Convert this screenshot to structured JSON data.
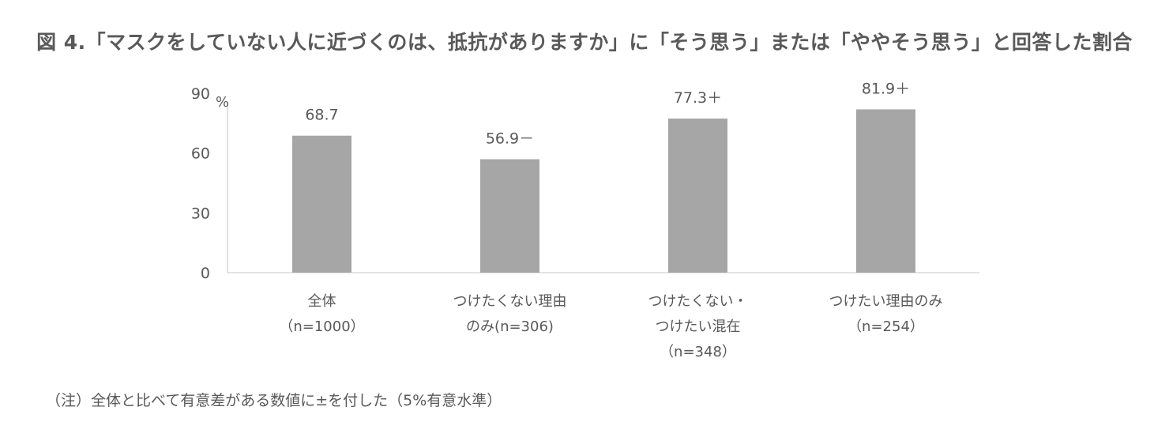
{
  "title": "図 4.「マスクをしていない人に近づくのは、抵抗がありますか」に「そう思う」または「ややそう思う」と回答した割合",
  "note": "（注）全体と比べて有意差がある数値に±を付した（5%有意水準）",
  "chart_data": {
    "type": "bar",
    "ylabel": "%",
    "ylim": [
      0,
      90
    ],
    "yticks": [
      0,
      30,
      60,
      90
    ],
    "grid": false,
    "categories": [
      [
        "全体",
        "（n=1000）"
      ],
      [
        "つけたくない理由",
        "のみ(n=306)"
      ],
      [
        "つけたくない・",
        "つけたい混在",
        "（n=348）"
      ],
      [
        "つけたい理由のみ",
        "（n=254）"
      ]
    ],
    "values": [
      68.7,
      56.9,
      77.3,
      81.9
    ],
    "data_labels": [
      "68.7",
      "56.9－",
      "77.3＋",
      "81.9＋"
    ],
    "colors": {
      "bar": "#a6a6a6",
      "axis": "#d9d9d9",
      "text": "#595959"
    }
  }
}
